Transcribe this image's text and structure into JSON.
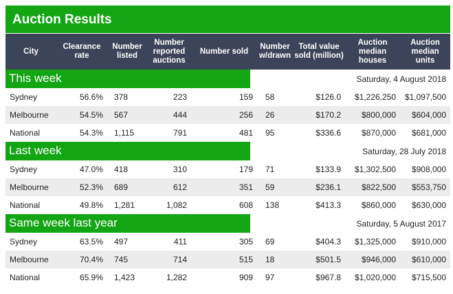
{
  "title": "Auction Results",
  "columns": [
    "City",
    "Clearance rate",
    "Number listed",
    "Number reported auctions",
    "Number sold",
    "Number w/drawn",
    "Total value sold (million)",
    "Auction median houses",
    "Auction median units"
  ],
  "sections": [
    {
      "label": "This week",
      "date": "Saturday, 4 August 2018",
      "rows": [
        [
          "Sydney",
          "56.6%",
          "378",
          "223",
          "159",
          "58",
          "$126.0",
          "$1,226,250",
          "$1,097,500"
        ],
        [
          "Melbourne",
          "54.5%",
          "567",
          "444",
          "256",
          "26",
          "$170.2",
          "$800,000",
          "$604,000"
        ],
        [
          "National",
          "54.3%",
          "1,115",
          "791",
          "481",
          "95",
          "$336.6",
          "$870,000",
          "$681,000"
        ]
      ]
    },
    {
      "label": "Last week",
      "date": "Saturday, 28 July 2018",
      "rows": [
        [
          "Sydney",
          "47.0%",
          "418",
          "310",
          "179",
          "71",
          "$133.9",
          "$1,302,500",
          "$908,000"
        ],
        [
          "Melbourne",
          "52.3%",
          "689",
          "612",
          "351",
          "59",
          "$236.1",
          "$822,500",
          "$553,750"
        ],
        [
          "National",
          "49.8%",
          "1,281",
          "1,082",
          "608",
          "138",
          "$413.3",
          "$860,000",
          "$630,000"
        ]
      ]
    },
    {
      "label": "Same week last year",
      "date": "Saturday, 5 August 2017",
      "rows": [
        [
          "Sydney",
          "63.5%",
          "497",
          "411",
          "305",
          "69",
          "$404.3",
          "$1,325,000",
          "$910,000"
        ],
        [
          "Melbourne",
          "70.4%",
          "745",
          "714",
          "515",
          "18",
          "$501.5",
          "$946,000",
          "$610,000"
        ],
        [
          "National",
          "65.9%",
          "1,423",
          "1,282",
          "909",
          "97",
          "$967.8",
          "$1,020,000",
          "$715,500"
        ]
      ]
    }
  ]
}
